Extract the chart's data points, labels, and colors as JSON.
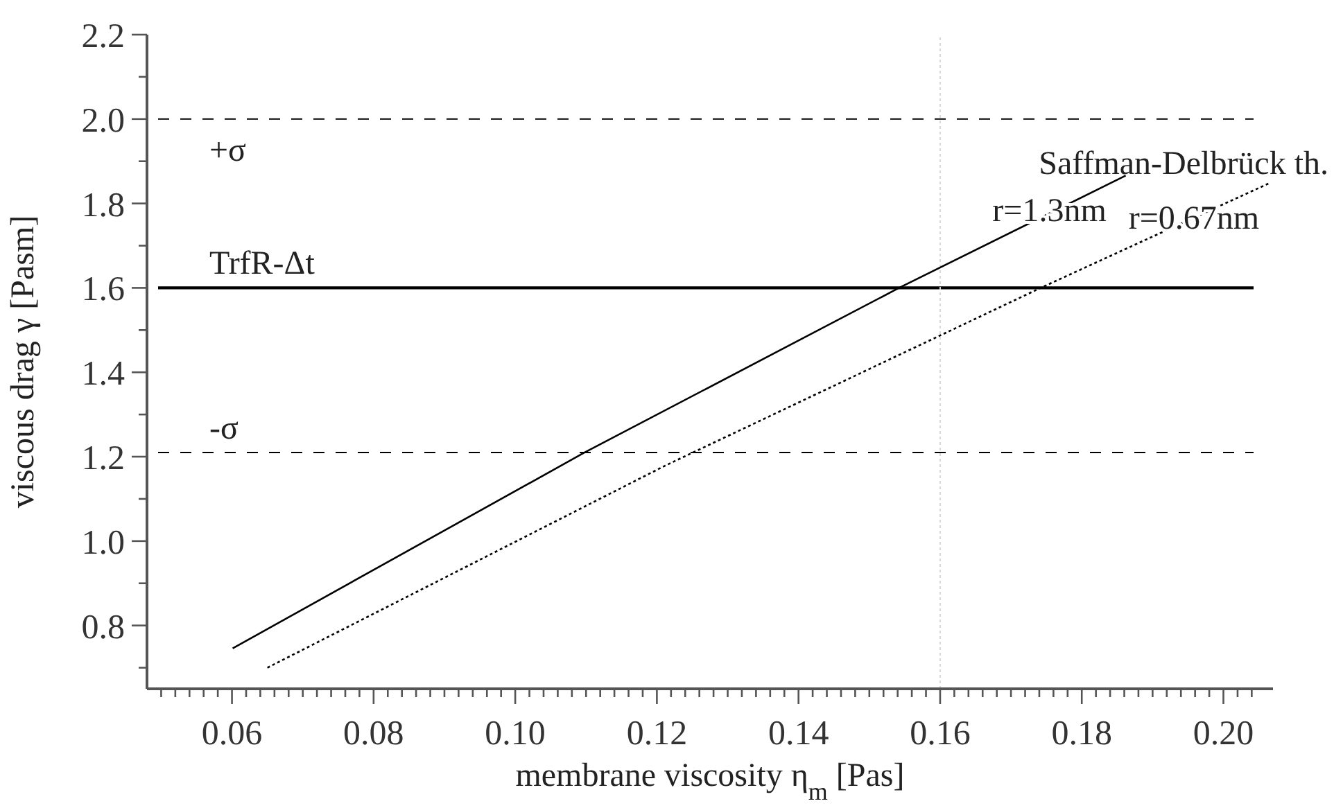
{
  "chart_data": {
    "type": "line",
    "xlabel": "membrane viscosity η$_{m}$ [Pas]",
    "ylabel": "viscous drag γ [Pasm]",
    "annotations": [
      "Saffman-Delbrück th."
    ],
    "xlim": [
      0.048,
      0.207
    ],
    "ylim": [
      0.65,
      2.2
    ],
    "xticks": [
      {
        "value": 0.05,
        "label": null
      },
      {
        "value": 0.052,
        "label": null
      },
      {
        "value": 0.054,
        "label": null
      },
      {
        "value": 0.056,
        "label": null
      },
      {
        "value": 0.058,
        "label": null
      },
      0.06,
      {
        "value": 0.062,
        "label": null
      },
      {
        "value": 0.064,
        "label": null
      },
      {
        "value": 0.066,
        "label": null
      },
      {
        "value": 0.068,
        "label": null
      },
      {
        "value": 0.07,
        "label": null
      },
      {
        "value": 0.072,
        "label": null
      },
      {
        "value": 0.074,
        "label": null
      },
      {
        "value": 0.076,
        "label": null
      },
      {
        "value": 0.078,
        "label": null
      },
      0.08,
      {
        "value": 0.082,
        "label": null
      },
      {
        "value": 0.084,
        "label": null
      },
      {
        "value": 0.086,
        "label": null
      },
      {
        "value": 0.088,
        "label": null
      },
      {
        "value": 0.09,
        "label": null
      },
      {
        "value": 0.092,
        "label": null
      },
      {
        "value": 0.094,
        "label": null
      },
      {
        "value": 0.096,
        "label": null
      },
      {
        "value": 0.098,
        "label": null
      },
      {
        "value": 0.1,
        "label": "0.10"
      },
      {
        "value": 0.102,
        "label": null
      },
      {
        "value": 0.104,
        "label": null
      },
      {
        "value": 0.106,
        "label": null
      },
      {
        "value": 0.108,
        "label": null
      },
      {
        "value": 0.11,
        "label": null
      },
      {
        "value": 0.112,
        "label": null
      },
      {
        "value": 0.114,
        "label": null
      },
      {
        "value": 0.116,
        "label": null
      },
      {
        "value": 0.118,
        "label": null
      },
      0.12,
      {
        "value": 0.122,
        "label": null
      },
      {
        "value": 0.124,
        "label": null
      },
      {
        "value": 0.126,
        "label": null
      },
      {
        "value": 0.128,
        "label": null
      },
      {
        "value": 0.13,
        "label": null
      },
      {
        "value": 0.132,
        "label": null
      },
      {
        "value": 0.134,
        "label": null
      },
      {
        "value": 0.136,
        "label": null
      },
      {
        "value": 0.138,
        "label": null
      },
      0.14,
      {
        "value": 0.142,
        "label": null
      },
      {
        "value": 0.144,
        "label": null
      },
      {
        "value": 0.146,
        "label": null
      },
      {
        "value": 0.148,
        "label": null
      },
      {
        "value": 0.15,
        "label": null
      },
      {
        "value": 0.152,
        "label": null
      },
      {
        "value": 0.154,
        "label": null
      },
      {
        "value": 0.156,
        "label": null
      },
      {
        "value": 0.158,
        "label": null
      },
      0.16,
      {
        "value": 0.162,
        "label": null
      },
      {
        "value": 0.164,
        "label": null
      },
      {
        "value": 0.166,
        "label": null
      },
      {
        "value": 0.168,
        "label": null
      },
      {
        "value": 0.17,
        "label": null
      },
      {
        "value": 0.172,
        "label": null
      },
      {
        "value": 0.174,
        "label": null
      },
      {
        "value": 0.176,
        "label": null
      },
      {
        "value": 0.178,
        "label": null
      },
      0.18,
      {
        "value": 0.182,
        "label": null
      },
      {
        "value": 0.184,
        "label": null
      },
      {
        "value": 0.186,
        "label": null
      },
      {
        "value": 0.188,
        "label": null
      },
      {
        "value": 0.19,
        "label": null
      },
      {
        "value": 0.192,
        "label": null
      },
      {
        "value": 0.194,
        "label": null
      },
      {
        "value": 0.196,
        "label": null
      },
      {
        "value": 0.198,
        "label": null
      },
      {
        "value": 0.2,
        "label": "0.20"
      },
      {
        "value": 0.202,
        "label": null
      },
      {
        "value": 0.204,
        "label": null
      }
    ],
    "yticks": [
      {
        "value": 0.7,
        "label": null
      },
      0.8,
      {
        "value": 0.9,
        "label": null
      },
      {
        "value": 1,
        "label": "1.0"
      },
      {
        "value": 1.1,
        "label": null
      },
      1.2,
      {
        "value": 1.3,
        "label": null
      },
      1.4,
      {
        "value": 1.5,
        "label": null
      },
      1.6,
      {
        "value": 1.7,
        "label": null
      },
      1.8,
      {
        "value": 1.9,
        "label": null
      },
      {
        "value": 2,
        "label": "2.0"
      },
      {
        "value": 2.1,
        "label": null
      },
      2.2
    ],
    "grid": false,
    "marker": "none",
    "series": [
      {
        "name": "r=1.3nm",
        "color": "#000000",
        "line_style": "solid",
        "x": [
          0.0601,
          0.1098,
          0.1542,
          0.1862
        ],
        "values": [
          0.746,
          1.21,
          1.6,
          1.866
        ]
      },
      {
        "name": "r=0.67nm",
        "color": "#000000",
        "line_style": "dotted",
        "x": [
          0.065,
          0.1212,
          0.1742,
          0.2066
        ],
        "values": [
          0.7,
          1.179,
          1.6,
          1.849
        ]
      }
    ],
    "ref_lines": [
      {
        "axis": "y",
        "value": 2.0,
        "label": "+σ",
        "color": "#000000",
        "line_style": "dashed"
      },
      {
        "axis": "y",
        "value": 1.6,
        "label": "TrfR-Δt",
        "color": "#000000",
        "line_style": "solid"
      },
      {
        "axis": "y",
        "value": 1.21,
        "label": "-σ",
        "color": "#000000",
        "line_style": "dashed"
      },
      {
        "axis": "x",
        "value": 0.16,
        "color": "#d8d8d8",
        "line_style": "dotted"
      }
    ]
  }
}
